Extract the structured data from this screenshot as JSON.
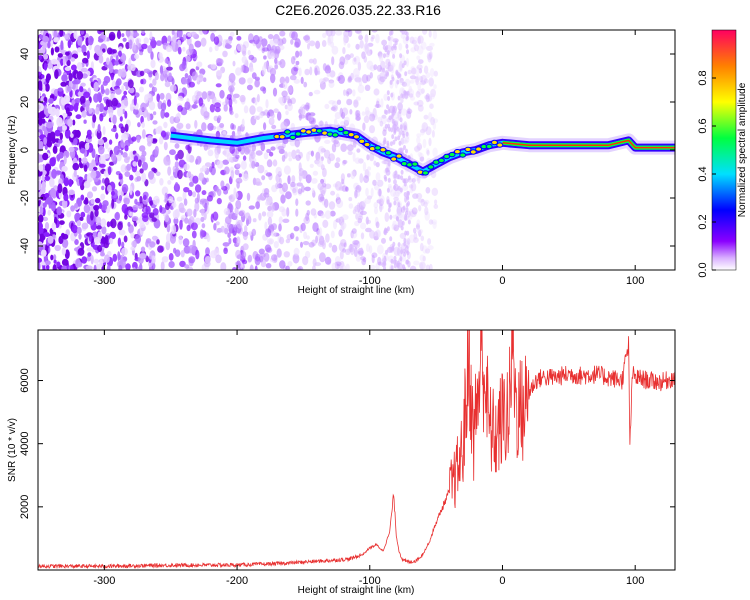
{
  "figure_title": "C2E6.2026.035.22.33.R16",
  "chart_data": [
    {
      "type": "heatmap",
      "title": "C2E6.2026.035.22.33.R16",
      "xlabel": "Height of straight line (km)",
      "ylabel": "Frequency (Hz)",
      "xlim": [
        -350,
        130
      ],
      "ylim": [
        -50,
        50
      ],
      "x_ticks": [
        -300,
        -200,
        -100,
        0,
        100
      ],
      "y_ticks": [
        -40,
        -20,
        0,
        20,
        40
      ],
      "x_tick_labels": [
        "-300",
        "-200",
        "-100",
        "0",
        "100"
      ],
      "y_tick_labels": [
        "-40",
        "-20",
        "0",
        "20",
        "40"
      ],
      "ridge": {
        "x": [
          -250,
          -220,
          -200,
          -180,
          -150,
          -130,
          -110,
          -100,
          -90,
          -80,
          -70,
          -60,
          -50,
          -40,
          -30,
          -20,
          -10,
          0,
          20,
          50,
          80,
          95,
          100,
          130
        ],
        "y": [
          6,
          4,
          3,
          5,
          7,
          8,
          6,
          2,
          -1,
          -3,
          -6,
          -9,
          -6,
          -3,
          -1,
          0,
          2,
          3,
          2,
          2,
          2,
          4,
          1,
          1
        ]
      },
      "colorbar": {
        "label": "Normalized spectral amplitude",
        "range": [
          0,
          1
        ],
        "ticks": [
          0.0,
          0.2,
          0.4,
          0.6,
          0.8
        ],
        "tick_labels": [
          "0.0",
          "0.2",
          "0.4",
          "0.6",
          "0.8"
        ]
      }
    },
    {
      "type": "line",
      "xlabel": "Height of straight line (km)",
      "ylabel": "SNR (10 * v/v)",
      "xlim": [
        -350,
        130
      ],
      "ylim": [
        0,
        7600
      ],
      "x_ticks": [
        -300,
        -200,
        -100,
        0,
        100
      ],
      "y_ticks": [
        2000,
        4000,
        6000
      ],
      "x_tick_labels": [
        "-300",
        "-200",
        "-100",
        "0",
        "100"
      ],
      "y_tick_labels": [
        "2000",
        "4000",
        "6000"
      ],
      "series": [
        {
          "name": "SNR",
          "color": "#e83030",
          "x": [
            -350,
            -300,
            -250,
            -200,
            -170,
            -150,
            -130,
            -115,
            -105,
            -100,
            -95,
            -90,
            -85,
            -82,
            -80,
            -78,
            -75,
            -70,
            -65,
            -60,
            -55,
            -50,
            -45,
            -40,
            -35,
            -30,
            -27,
            -25,
            -22,
            -20,
            -15,
            -10,
            -5,
            0,
            5,
            8,
            10,
            15,
            20,
            25,
            30,
            40,
            50,
            60,
            70,
            80,
            90,
            95,
            96,
            98,
            100,
            110,
            120,
            130
          ],
          "y": [
            120,
            120,
            150,
            160,
            200,
            250,
            300,
            350,
            500,
            700,
            800,
            600,
            1200,
            2400,
            1100,
            600,
            300,
            250,
            300,
            500,
            900,
            1500,
            2000,
            2500,
            3000,
            3800,
            5600,
            6900,
            4000,
            5000,
            6900,
            4500,
            4200,
            4800,
            5000,
            7600,
            5200,
            5000,
            5600,
            6000,
            6100,
            6100,
            6200,
            6150,
            6200,
            6100,
            6000,
            7100,
            4000,
            6200,
            6100,
            6000,
            5950,
            6100
          ]
        }
      ]
    }
  ]
}
